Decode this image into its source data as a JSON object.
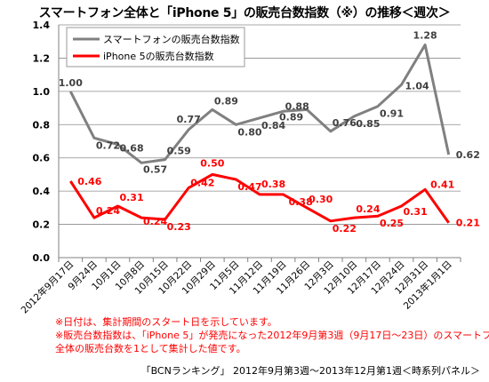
{
  "title": "スマートフォン全体と「iPhone 5」の販売台数指数（※）の推移＜週次＞",
  "notes": [
    "※日付は、集計期間のスタート日を示しています。",
    "※販売台数指数は、「iPhone 5」が発売になった2012年9月第3週（9月17日〜23日）のスマートフォン",
    "全体の販売台数を1として集計した値です。"
  ],
  "footer": "「BCNランキング」 2012年9月第3週〜2013年12月第1週＜時系列パネル＞",
  "chart_data": {
    "type": "line",
    "categories": [
      "2012年9月17日",
      "9月24日",
      "10月1日",
      "10月8日",
      "10月15日",
      "10月22日",
      "10月29日",
      "11月5日",
      "11月12日",
      "11月19日",
      "11月26日",
      "12月3日",
      "12月10日",
      "12月17日",
      "12月24日",
      "12月31日",
      "2013年1月1日"
    ],
    "ylim": [
      0,
      1.4
    ],
    "yticks": [
      "0.0",
      "0.2",
      "0.4",
      "0.6",
      "0.8",
      "1.0",
      "1.2",
      "1.4"
    ],
    "grid": true,
    "legend_position": "top-left",
    "series": [
      {
        "name": "スマートフォンの販売台数指数",
        "color": "#808080",
        "values": [
          1.0,
          0.72,
          0.68,
          0.57,
          0.59,
          0.77,
          0.89,
          0.8,
          0.84,
          0.88,
          0.89,
          0.76,
          0.85,
          0.91,
          1.04,
          1.28,
          0.62
        ],
        "labels": [
          "1.00",
          "0.72",
          "0.68",
          "0.57",
          "0.59",
          "0.77",
          "0.89",
          "0.80",
          "0.84",
          "0.88",
          "0.89",
          "0.76",
          "0.85",
          "0.91",
          "1.04",
          "1.28",
          "0.62"
        ]
      },
      {
        "name": "iPhone 5の販売台数指数",
        "color": "#ff0000",
        "values": [
          0.46,
          0.24,
          0.31,
          0.24,
          0.23,
          0.42,
          0.5,
          0.47,
          0.38,
          0.38,
          0.3,
          0.22,
          0.24,
          0.25,
          0.31,
          0.41,
          0.21
        ],
        "labels": [
          "0.46",
          "0.24",
          "0.31",
          "0.24",
          "0.23",
          "0.42",
          "0.50",
          "0.47",
          "0.38",
          "0.38",
          "0.30",
          "0.22",
          "0.24",
          "0.25",
          "0.31",
          "0.41",
          "0.21"
        ]
      }
    ]
  }
}
